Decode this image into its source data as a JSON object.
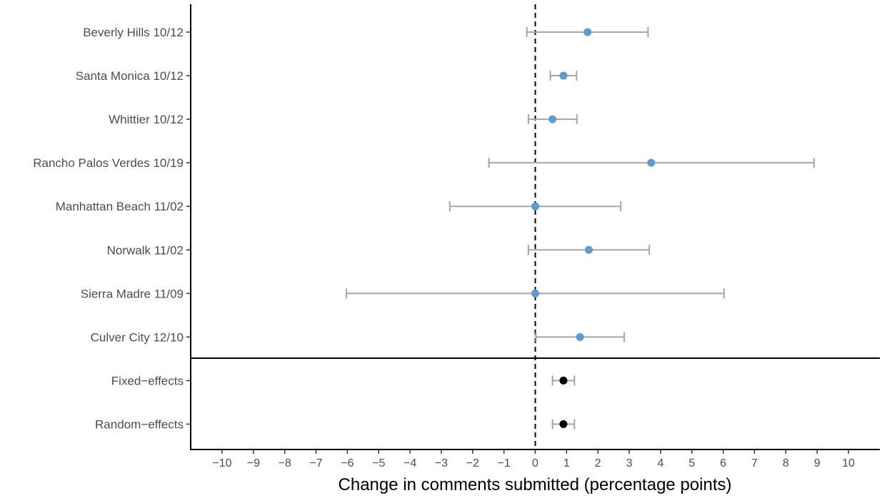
{
  "chart_data": {
    "type": "scatter",
    "subtype": "forest-plot",
    "title": "",
    "xlabel": "Change in comments submitted (percentage points)",
    "ylabel": "",
    "xlim": [
      -11,
      11
    ],
    "x_ticks": [
      -10,
      -9,
      -8,
      -7,
      -6,
      -5,
      -4,
      -3,
      -2,
      -1,
      0,
      1,
      2,
      3,
      4,
      5,
      6,
      7,
      8,
      9,
      10
    ],
    "reference_line": {
      "x": 0,
      "style": "dashed"
    },
    "grid": false,
    "legend": "none",
    "rows": [
      {
        "label": "Beverly Hills 10/12",
        "estimate": 1.67,
        "lower": -0.27,
        "upper": 3.6,
        "group": "meeting"
      },
      {
        "label": "Santa Monica 10/12",
        "estimate": 0.9,
        "lower": 0.48,
        "upper": 1.32,
        "group": "meeting"
      },
      {
        "label": "Whittier 10/12",
        "estimate": 0.55,
        "lower": -0.22,
        "upper": 1.33,
        "group": "meeting"
      },
      {
        "label": "Rancho Palos Verdes 10/19",
        "estimate": 3.7,
        "lower": -1.48,
        "upper": 8.9,
        "group": "meeting"
      },
      {
        "label": "Manhattan Beach 11/02",
        "estimate": 0.0,
        "lower": -2.73,
        "upper": 2.73,
        "group": "meeting"
      },
      {
        "label": "Norwalk 11/02",
        "estimate": 1.71,
        "lower": -0.22,
        "upper": 3.64,
        "group": "meeting"
      },
      {
        "label": "Sierra Madre 11/09",
        "estimate": 0.0,
        "lower": -6.03,
        "upper": 6.03,
        "group": "meeting"
      },
      {
        "label": "Culver City 12/10",
        "estimate": 1.43,
        "lower": 0.02,
        "upper": 2.84,
        "group": "meeting"
      },
      {
        "label": "Fixed−effects",
        "estimate": 0.9,
        "lower": 0.55,
        "upper": 1.25,
        "group": "pooled"
      },
      {
        "label": "Random−effects",
        "estimate": 0.9,
        "lower": 0.55,
        "upper": 1.25,
        "group": "pooled"
      }
    ],
    "colors": {
      "meeting_point": "#5b9bd5",
      "pooled_point": "#000000",
      "error_bar": "#a6a6a6",
      "axis": "#000000"
    }
  }
}
